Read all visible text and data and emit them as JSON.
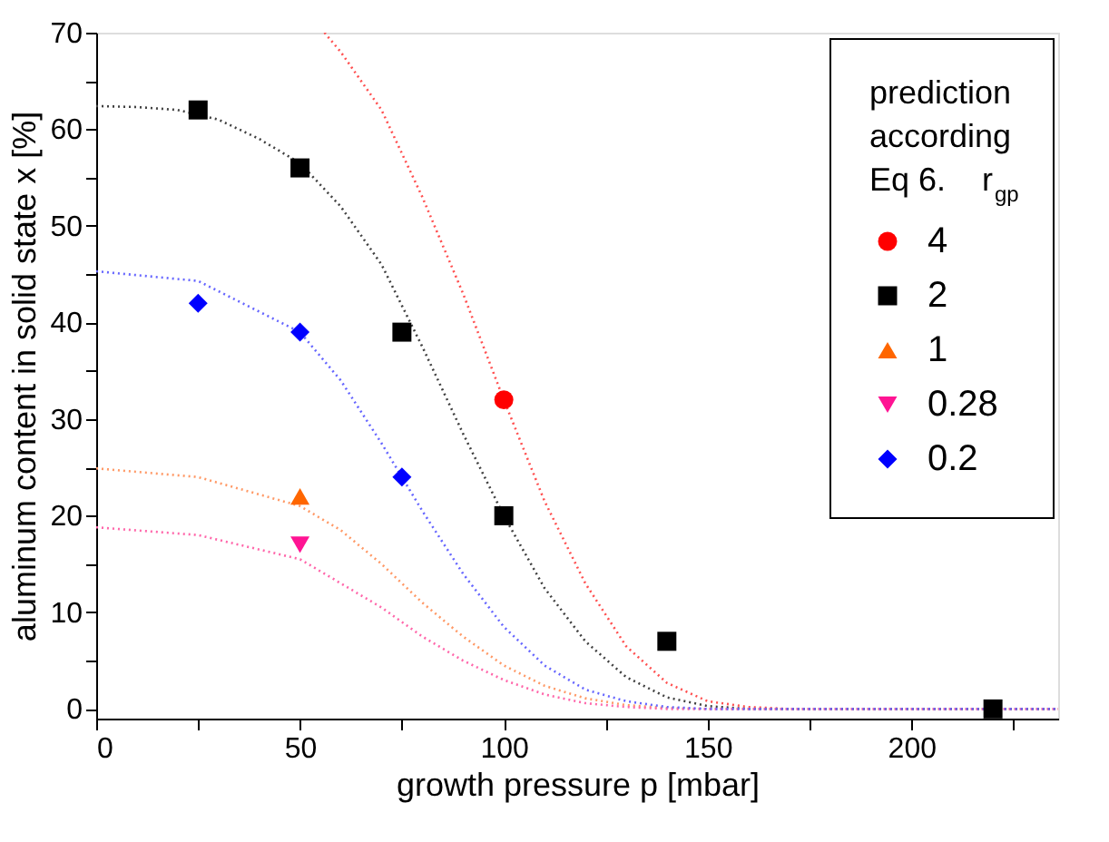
{
  "chart_data": {
    "type": "scatter",
    "xlabel": "growth pressure p [mbar]",
    "ylabel": "aluminum content in solid state x [%]",
    "legend_title": "prediction according Eq 6.",
    "annotations": [
      "r$_{gp}$"
    ],
    "xlim": [
      0,
      236
    ],
    "ylim": [
      -1,
      70
    ],
    "xticks": [
      0,
      {
        "value": 25,
        "label": null
      },
      50,
      {
        "value": 75,
        "label": null
      },
      100,
      {
        "value": 125,
        "label": null
      },
      150,
      {
        "value": 175,
        "label": null
      },
      200,
      {
        "value": 225,
        "label": null
      }
    ],
    "yticks": [
      0,
      {
        "value": 5,
        "label": null
      },
      10,
      {
        "value": 15,
        "label": null
      },
      20,
      {
        "value": 25,
        "label": null
      },
      30,
      {
        "value": 35,
        "label": null
      },
      40,
      {
        "value": 45,
        "label": null
      },
      50,
      {
        "value": 55,
        "label": null
      },
      60,
      {
        "value": 65,
        "label": null
      },
      70
    ],
    "grid": false,
    "legend": "top right",
    "series": [
      {
        "name": "4",
        "marker": "circle",
        "color": "#ff0000",
        "x": [
          100
        ],
        "values": [
          32
        ]
      },
      {
        "name": "2",
        "marker": "square",
        "color": "#000000",
        "x": [
          25,
          50,
          75,
          100,
          140,
          220
        ],
        "values": [
          62,
          56,
          39,
          20,
          7,
          0
        ]
      },
      {
        "name": "1",
        "marker": "triangle",
        "color": "#ff6600",
        "x": [
          50
        ],
        "values": [
          22
        ]
      },
      {
        "name": "0.28",
        "marker": "triangle-down",
        "color": "#ff1493",
        "x": [
          50
        ],
        "values": [
          17
        ]
      },
      {
        "name": "0.2",
        "marker": "diamond",
        "color": "#0000ff",
        "x": [
          25,
          50,
          75
        ],
        "values": [
          42,
          39,
          24
        ]
      },
      {
        "type": "line",
        "line_style": "dotted",
        "color": "#ff5050",
        "x": [
          56,
          60,
          70,
          80,
          90,
          100,
          110,
          120,
          130,
          140,
          150,
          160,
          170,
          236
        ],
        "values": [
          70,
          68,
          62,
          53,
          43,
          32,
          21.5,
          13,
          6.5,
          2.7,
          0.8,
          0.2,
          0,
          0
        ]
      },
      {
        "type": "line",
        "line_style": "dotted",
        "color": "#404040",
        "x": [
          0,
          10,
          20,
          30,
          40,
          50,
          60,
          70,
          80,
          90,
          100,
          110,
          120,
          130,
          140,
          150,
          160,
          236
        ],
        "values": [
          62.4,
          62.3,
          62,
          61,
          59,
          56.5,
          52,
          46,
          37.5,
          28.5,
          20,
          12.5,
          7,
          3.3,
          1.2,
          0.3,
          0,
          0
        ]
      },
      {
        "type": "line",
        "line_style": "dotted",
        "color": "#ff9966",
        "x": [
          0,
          25,
          50,
          60,
          70,
          75,
          80,
          90,
          100,
          110,
          120,
          130,
          140,
          150,
          236
        ],
        "values": [
          24.9,
          24,
          21,
          18.5,
          15,
          13,
          11,
          7.5,
          4.5,
          2.4,
          1.1,
          0.4,
          0.1,
          0,
          0
        ]
      },
      {
        "type": "line",
        "line_style": "dotted",
        "color": "#ff66aa",
        "x": [
          0,
          25,
          50,
          60,
          70,
          75,
          80,
          90,
          100,
          110,
          120,
          130,
          140,
          150,
          236
        ],
        "values": [
          18.8,
          18,
          15.5,
          13,
          10.5,
          9,
          7.5,
          5,
          3,
          1.5,
          0.6,
          0.2,
          0,
          0,
          0
        ]
      },
      {
        "type": "line",
        "line_style": "dotted",
        "color": "#6666ff",
        "x": [
          0,
          25,
          50,
          60,
          70,
          75,
          80,
          90,
          100,
          110,
          120,
          130,
          140,
          150,
          236
        ],
        "values": [
          45.3,
          44.3,
          39,
          34,
          27.5,
          24,
          20.5,
          14,
          8.5,
          4.5,
          2,
          0.8,
          0.2,
          0,
          0
        ]
      }
    ]
  }
}
